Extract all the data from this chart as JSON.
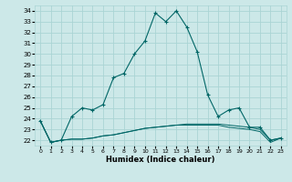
{
  "title": "",
  "xlabel": "Humidex (Indice chaleur)",
  "ylabel": "",
  "background_color": "#cce8e8",
  "grid_color": "#aad4d4",
  "line_color": "#006666",
  "xlim": [
    -0.5,
    23.5
  ],
  "ylim": [
    21.5,
    34.5
  ],
  "yticks": [
    22,
    23,
    24,
    25,
    26,
    27,
    28,
    29,
    30,
    31,
    32,
    33,
    34
  ],
  "xticks": [
    0,
    1,
    2,
    3,
    4,
    5,
    6,
    7,
    8,
    9,
    10,
    11,
    12,
    13,
    14,
    15,
    16,
    17,
    18,
    19,
    20,
    21,
    22,
    23
  ],
  "series1_x": [
    0,
    1,
    2,
    3,
    4,
    5,
    6,
    7,
    8,
    9,
    10,
    11,
    12,
    13,
    14,
    15,
    16,
    17,
    18,
    19,
    20,
    21,
    22,
    23
  ],
  "series1_y": [
    23.8,
    21.8,
    22.0,
    24.2,
    25.0,
    24.8,
    25.3,
    27.8,
    28.2,
    30.0,
    31.2,
    33.8,
    33.0,
    34.0,
    32.5,
    30.2,
    26.2,
    24.2,
    24.8,
    25.0,
    23.2,
    23.2,
    22.0,
    22.2
  ],
  "series2_x": [
    0,
    1,
    2,
    3,
    4,
    5,
    6,
    7,
    8,
    9,
    10,
    11,
    12,
    13,
    14,
    15,
    16,
    17,
    18,
    19,
    20,
    21,
    22,
    23
  ],
  "series2_y": [
    23.8,
    21.8,
    22.0,
    22.1,
    22.1,
    22.2,
    22.4,
    22.5,
    22.7,
    22.9,
    23.1,
    23.2,
    23.3,
    23.4,
    23.5,
    23.5,
    23.5,
    23.5,
    23.4,
    23.3,
    23.2,
    23.0,
    22.0,
    22.2
  ],
  "series3_x": [
    0,
    1,
    2,
    3,
    4,
    5,
    6,
    7,
    8,
    9,
    10,
    11,
    12,
    13,
    14,
    15,
    16,
    17,
    18,
    19,
    20,
    21,
    22,
    23
  ],
  "series3_y": [
    23.8,
    21.8,
    22.0,
    22.1,
    22.1,
    22.2,
    22.4,
    22.5,
    22.7,
    22.9,
    23.1,
    23.2,
    23.3,
    23.4,
    23.4,
    23.4,
    23.4,
    23.4,
    23.2,
    23.1,
    23.0,
    22.8,
    21.8,
    22.2
  ]
}
